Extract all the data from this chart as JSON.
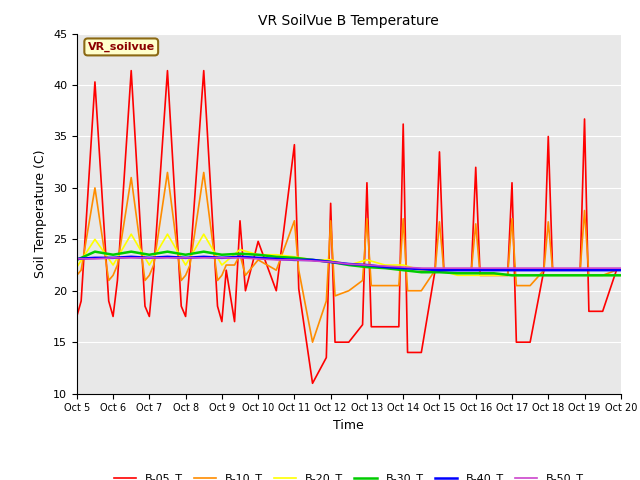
{
  "title": "VR SoilVue B Temperature",
  "xlabel": "Time",
  "ylabel": "Soil Temperature (C)",
  "ylim": [
    10,
    45
  ],
  "xlim": [
    0,
    15
  ],
  "x_tick_labels": [
    "Oct 5",
    "Oct 6",
    "Oct 7",
    "Oct 8",
    "Oct 9",
    "Oct 10",
    "Oct 11",
    "Oct 12",
    "Oct 13",
    "Oct 14",
    "Oct 15",
    "Oct 16",
    "Oct 17",
    "Oct 18",
    "Oct 19",
    "Oct 20"
  ],
  "annotation_box": "VR_soilvue",
  "fig_bg": "#ffffff",
  "plot_bg": "#e8e8e8",
  "grid_color": "#ffffff",
  "series": {
    "B-05_T": {
      "color": "#ff0000",
      "lw": 1.2,
      "x": [
        0,
        0.12,
        0.5,
        0.88,
        1.0,
        1.12,
        1.5,
        1.88,
        2.0,
        2.12,
        2.5,
        2.88,
        3.0,
        3.12,
        3.5,
        3.88,
        4.0,
        4.12,
        4.35,
        4.5,
        4.65,
        5.0,
        5.5,
        6.0,
        6.12,
        6.5,
        6.88,
        7.0,
        7.12,
        7.5,
        7.88,
        8.0,
        8.12,
        8.5,
        8.88,
        9.0,
        9.12,
        9.5,
        9.88,
        10.0,
        10.12,
        10.5,
        10.88,
        11.0,
        11.12,
        11.5,
        11.88,
        12.0,
        12.12,
        12.5,
        12.88,
        13.0,
        13.12,
        13.5,
        13.88,
        14.0,
        14.12,
        14.5,
        14.88,
        15.0
      ],
      "y": [
        17.5,
        19.0,
        40.3,
        19.0,
        17.5,
        21.0,
        41.4,
        18.5,
        17.5,
        22.0,
        41.4,
        18.5,
        17.5,
        22.5,
        41.4,
        18.5,
        17.0,
        22.0,
        17.0,
        26.8,
        20.0,
        24.8,
        20.0,
        34.2,
        20.2,
        11.0,
        13.5,
        28.5,
        15.0,
        15.0,
        16.7,
        30.5,
        16.5,
        16.5,
        16.5,
        36.2,
        14.0,
        14.0,
        22.0,
        33.5,
        22.0,
        22.0,
        22.0,
        32.0,
        21.5,
        21.5,
        21.5,
        30.5,
        15.0,
        15.0,
        22.0,
        35.0,
        22.0,
        22.0,
        22.0,
        36.7,
        18.0,
        18.0,
        22.0,
        22.0
      ]
    },
    "B-10_T": {
      "color": "#ff8c00",
      "lw": 1.2,
      "x": [
        0,
        0.12,
        0.5,
        0.88,
        1.0,
        1.12,
        1.5,
        1.88,
        2.0,
        2.12,
        2.5,
        2.88,
        3.0,
        3.12,
        3.5,
        3.88,
        4.0,
        4.12,
        4.35,
        4.5,
        4.65,
        5.0,
        5.5,
        6.0,
        6.12,
        6.5,
        6.88,
        7.0,
        7.12,
        7.5,
        7.88,
        8.0,
        8.12,
        8.5,
        8.88,
        9.0,
        9.12,
        9.5,
        9.88,
        10.0,
        10.12,
        10.5,
        10.88,
        11.0,
        11.12,
        11.5,
        11.88,
        12.0,
        12.12,
        12.5,
        12.88,
        13.0,
        13.12,
        13.5,
        13.88,
        14.0,
        14.12,
        14.5,
        14.88,
        15.0
      ],
      "y": [
        21.5,
        22.0,
        30.0,
        21.0,
        21.5,
        22.5,
        31.0,
        21.0,
        21.5,
        22.5,
        31.5,
        21.0,
        21.5,
        22.5,
        31.5,
        21.0,
        21.5,
        22.5,
        22.5,
        23.5,
        21.5,
        23.0,
        22.0,
        26.8,
        22.0,
        15.0,
        19.0,
        26.8,
        19.5,
        20.0,
        21.0,
        27.0,
        20.5,
        20.5,
        20.5,
        27.0,
        20.0,
        20.0,
        22.0,
        26.7,
        22.0,
        22.0,
        22.0,
        26.5,
        21.5,
        21.5,
        21.5,
        27.0,
        20.5,
        20.5,
        22.0,
        26.7,
        22.0,
        22.0,
        22.0,
        27.8,
        21.5,
        21.5,
        22.0,
        22.0
      ]
    },
    "B-20_T": {
      "color": "#ffff00",
      "lw": 1.2,
      "x": [
        0,
        0.5,
        1.0,
        1.5,
        2.0,
        2.5,
        3.0,
        3.5,
        4.0,
        4.5,
        5.0,
        5.5,
        6.0,
        6.5,
        7.0,
        7.5,
        8.0,
        8.5,
        9.0,
        9.5,
        10.0,
        10.5,
        11.0,
        11.5,
        12.0,
        12.5,
        13.0,
        13.5,
        14.0,
        14.5,
        15.0
      ],
      "y": [
        22.3,
        25.0,
        22.5,
        25.5,
        22.5,
        25.5,
        22.5,
        25.5,
        22.5,
        24.0,
        23.5,
        23.5,
        23.3,
        23.0,
        23.0,
        22.5,
        23.0,
        22.5,
        22.5,
        22.0,
        22.0,
        21.5,
        21.5,
        21.5,
        21.5,
        21.5,
        21.5,
        21.5,
        21.5,
        21.5,
        21.5
      ]
    },
    "B-30_T": {
      "color": "#00cc00",
      "lw": 1.8,
      "x": [
        0,
        0.5,
        1.0,
        1.5,
        2.0,
        2.5,
        3.0,
        3.5,
        4.0,
        4.5,
        5.0,
        5.5,
        6.0,
        6.5,
        7.0,
        7.5,
        8.0,
        8.5,
        9.0,
        9.5,
        10.0,
        10.5,
        11.0,
        11.5,
        12.0,
        12.5,
        13.0,
        13.5,
        14.0,
        14.5,
        15.0
      ],
      "y": [
        23.0,
        23.8,
        23.5,
        23.8,
        23.5,
        23.8,
        23.5,
        23.8,
        23.5,
        23.6,
        23.5,
        23.3,
        23.2,
        23.0,
        22.8,
        22.5,
        22.3,
        22.2,
        22.0,
        21.8,
        21.8,
        21.7,
        21.7,
        21.7,
        21.5,
        21.5,
        21.5,
        21.5,
        21.5,
        21.5,
        21.5
      ]
    },
    "B-40_T": {
      "color": "#0000ff",
      "lw": 1.8,
      "x": [
        0,
        0.5,
        1.0,
        1.5,
        2.0,
        2.5,
        3.0,
        3.5,
        4.0,
        4.5,
        5.0,
        5.5,
        6.0,
        6.5,
        7.0,
        7.5,
        8.0,
        8.5,
        9.0,
        9.5,
        10.0,
        10.5,
        11.0,
        11.5,
        12.0,
        12.5,
        13.0,
        13.5,
        14.0,
        14.5,
        15.0
      ],
      "y": [
        23.1,
        23.2,
        23.2,
        23.3,
        23.2,
        23.3,
        23.2,
        23.3,
        23.2,
        23.3,
        23.2,
        23.1,
        23.0,
        23.0,
        22.8,
        22.6,
        22.5,
        22.3,
        22.2,
        22.1,
        22.0,
        22.0,
        22.0,
        22.0,
        22.0,
        22.0,
        22.0,
        22.0,
        22.0,
        22.0,
        22.0
      ]
    },
    "B-50_T": {
      "color": "#cc44cc",
      "lw": 1.2,
      "x": [
        0,
        0.5,
        1.0,
        1.5,
        2.0,
        2.5,
        3.0,
        3.5,
        4.0,
        4.5,
        5.0,
        5.5,
        6.0,
        6.5,
        7.0,
        7.5,
        8.0,
        8.5,
        9.0,
        9.5,
        10.0,
        10.5,
        11.0,
        11.5,
        12.0,
        12.5,
        13.0,
        13.5,
        14.0,
        14.5,
        15.0
      ],
      "y": [
        23.1,
        23.1,
        23.2,
        23.2,
        23.2,
        23.2,
        23.2,
        23.2,
        23.2,
        23.2,
        23.1,
        23.0,
        23.0,
        22.9,
        22.8,
        22.6,
        22.5,
        22.4,
        22.3,
        22.2,
        22.2,
        22.2,
        22.2,
        22.2,
        22.2,
        22.2,
        22.2,
        22.2,
        22.2,
        22.2,
        22.2
      ]
    }
  },
  "legend_entries": [
    "B-05_T",
    "B-10_T",
    "B-20_T",
    "B-30_T",
    "B-40_T",
    "B-50_T"
  ],
  "legend_colors": [
    "#ff0000",
    "#ff8c00",
    "#ffff00",
    "#00cc00",
    "#0000ff",
    "#cc44cc"
  ],
  "legend_lws": [
    1.2,
    1.2,
    1.2,
    1.8,
    1.8,
    1.2
  ]
}
